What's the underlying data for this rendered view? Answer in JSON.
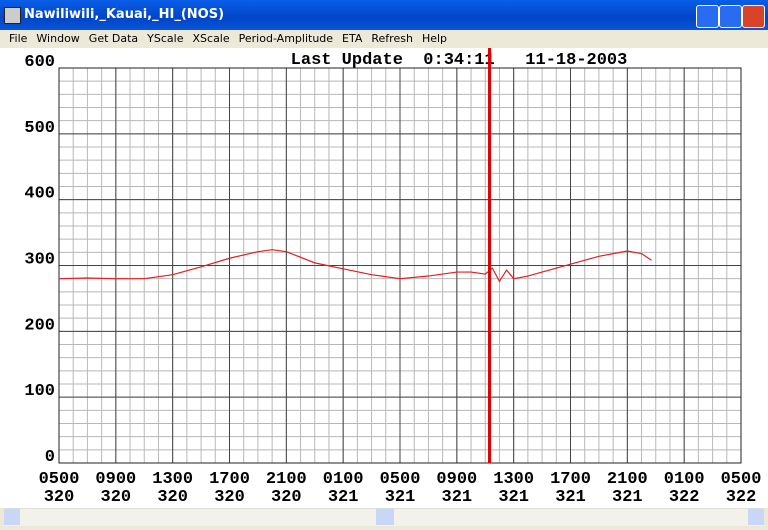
{
  "window": {
    "title": "Nawiliwili,_Kauai,_HI_(NOS)",
    "menu": [
      "File",
      "Window",
      "Get Data",
      "YScale",
      "XScale",
      "Period-Amplitude",
      "ETA",
      "Refresh",
      "Help"
    ]
  },
  "chart_data": {
    "type": "line",
    "title": "Last Update  0:34:11   11-18-2003",
    "x": [
      0,
      2,
      4,
      6,
      8,
      10,
      12,
      14,
      15,
      16,
      18,
      20,
      22,
      24,
      26,
      28,
      29,
      30,
      30.5,
      31,
      31.5,
      32,
      33,
      34,
      36,
      38,
      40,
      41,
      41.7
    ],
    "series": [
      {
        "color": "#e02020",
        "values": [
          280,
          281,
          280,
          280,
          286,
          298,
          311,
          321,
          324,
          321,
          304,
          295,
          286,
          280,
          284,
          290,
          290,
          287,
          296,
          276,
          293,
          280,
          284,
          290,
          302,
          314,
          322,
          318,
          308
        ]
      }
    ],
    "marker_x": 30.3,
    "marker_color": "#e00000",
    "xlim": [
      0,
      48
    ],
    "xticks": [
      {
        "value": 0,
        "label": "0500",
        "day": "320"
      },
      {
        "value": 4,
        "label": "0900",
        "day": "320"
      },
      {
        "value": 8,
        "label": "1300",
        "day": "320"
      },
      {
        "value": 12,
        "label": "1700",
        "day": "320"
      },
      {
        "value": 16,
        "label": "2100",
        "day": "320"
      },
      {
        "value": 20,
        "label": "0100",
        "day": "321"
      },
      {
        "value": 24,
        "label": "0500",
        "day": "321"
      },
      {
        "value": 28,
        "label": "0900",
        "day": "321"
      },
      {
        "value": 32,
        "label": "1300",
        "day": "321"
      },
      {
        "value": 36,
        "label": "1700",
        "day": "321"
      },
      {
        "value": 40,
        "label": "2100",
        "day": "321"
      },
      {
        "value": 44,
        "label": "0100",
        "day": "322"
      },
      {
        "value": 48,
        "label": "0500",
        "day": "322"
      }
    ],
    "ylim": [
      0,
      600
    ],
    "yticks": [
      0,
      100,
      200,
      300,
      400,
      500,
      600
    ],
    "grid": true,
    "x_minor_step": 1,
    "y_minor_step": 20
  }
}
